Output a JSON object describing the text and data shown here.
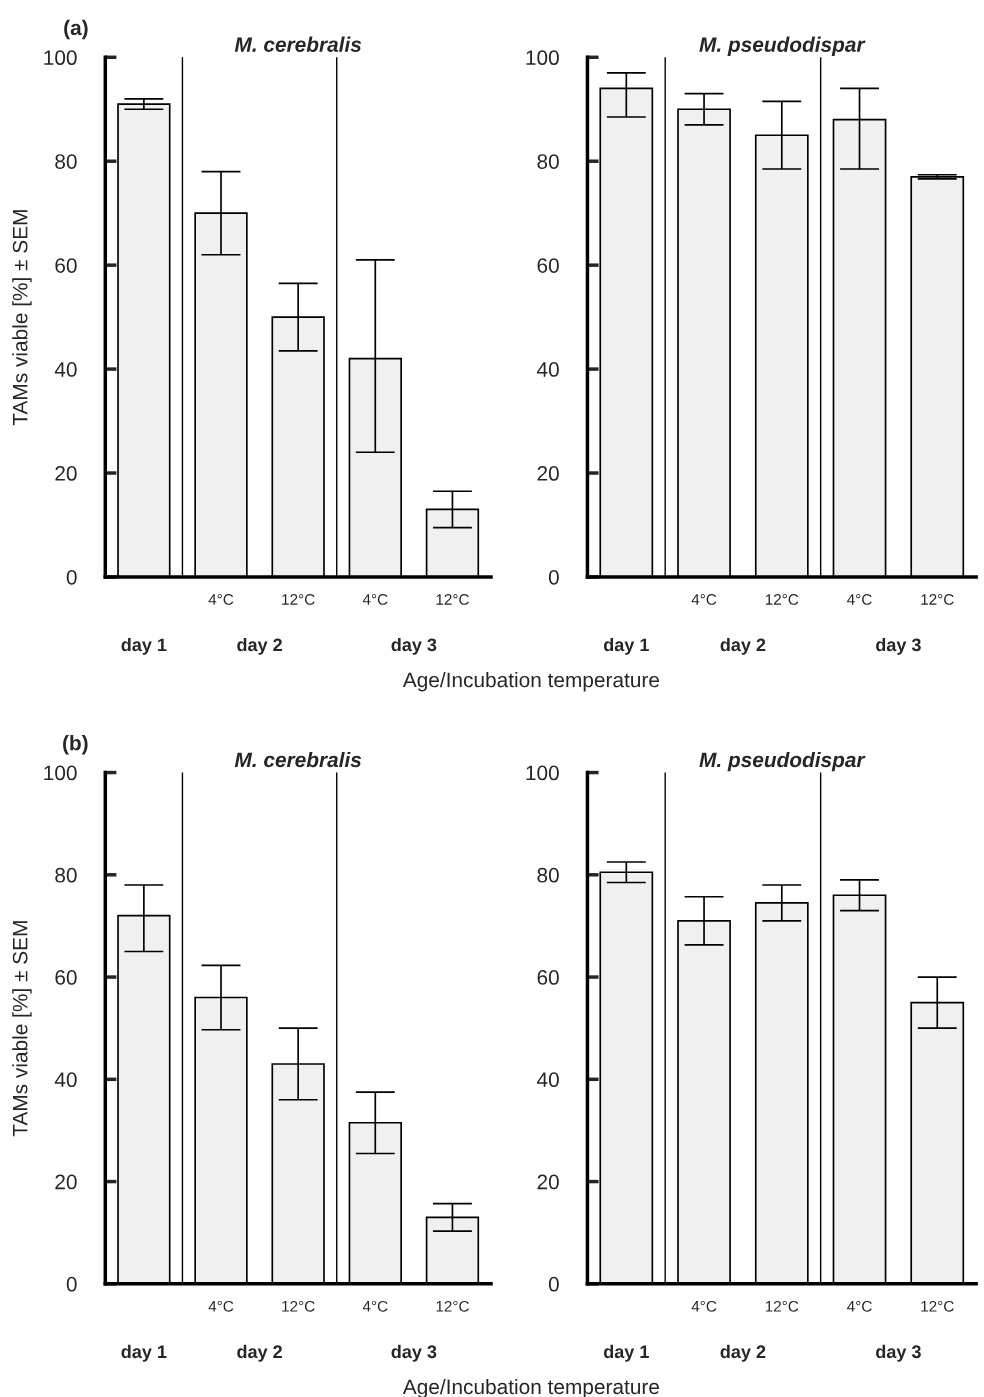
{
  "chart_data": [
    {
      "type": "bar",
      "title": "M. cerebralis",
      "ylabel": "TAMs viable [%] ± SEM",
      "xlabel": "Age/Incubation temperature",
      "annotations": [
        "(a)",
        "day 1",
        "day 2",
        "day 3"
      ],
      "categories": [
        null,
        "4°C",
        "12°C",
        "4°C",
        "12°C"
      ],
      "values": [
        91,
        70,
        50,
        42,
        13
      ],
      "errors": [
        1,
        8,
        6.5,
        [
          24,
          61
        ],
        3.5
      ],
      "color": "#f0f0f0",
      "ylim": [
        0,
        100
      ],
      "yticks": [
        0,
        20,
        40,
        60,
        80,
        100
      ],
      "grid": false
    },
    {
      "type": "bar",
      "title": "M. pseudodispar",
      "annotations": [
        "day 1",
        "day 2",
        "day 3"
      ],
      "categories": [
        null,
        "4°C",
        "12°C",
        "4°C",
        "12°C"
      ],
      "values": [
        94,
        90,
        85,
        88,
        77
      ],
      "errors": [
        [
          88.5,
          97
        ],
        3,
        6.5,
        [
          78.5,
          94
        ],
        0.4
      ],
      "color": "#f0f0f0",
      "ylim": [
        0,
        100
      ],
      "yticks": [
        0,
        20,
        40,
        60,
        80,
        100
      ],
      "grid": false
    },
    {
      "type": "bar",
      "title": "M. cerebralis",
      "ylabel": "TAMs viable [%] ± SEM",
      "xlabel": "Age/Incubation temperature",
      "annotations": [
        "(b)",
        "day 1",
        "day 2",
        "day 3"
      ],
      "categories": [
        null,
        "4°C",
        "12°C",
        "4°C",
        "12°C"
      ],
      "values": [
        72,
        56,
        43,
        31.5,
        13
      ],
      "errors": [
        [
          65,
          78
        ],
        6.3,
        7,
        6,
        2.7
      ],
      "color": "#f0f0f0",
      "ylim": [
        0,
        100
      ],
      "yticks": [
        0,
        20,
        40,
        60,
        80,
        100
      ],
      "grid": false
    },
    {
      "type": "bar",
      "title": "M. pseudodispar",
      "annotations": [
        "day 1",
        "day 2",
        "day 3"
      ],
      "categories": [
        null,
        "4°C",
        "12°C",
        "4°C",
        "12°C"
      ],
      "values": [
        80.5,
        71,
        74.5,
        76,
        55
      ],
      "errors": [
        2,
        4.7,
        3.5,
        3,
        5
      ],
      "color": "#f0f0f0",
      "ylim": [
        0,
        100
      ],
      "yticks": [
        0,
        20,
        40,
        60,
        80,
        100
      ],
      "grid": false
    }
  ]
}
